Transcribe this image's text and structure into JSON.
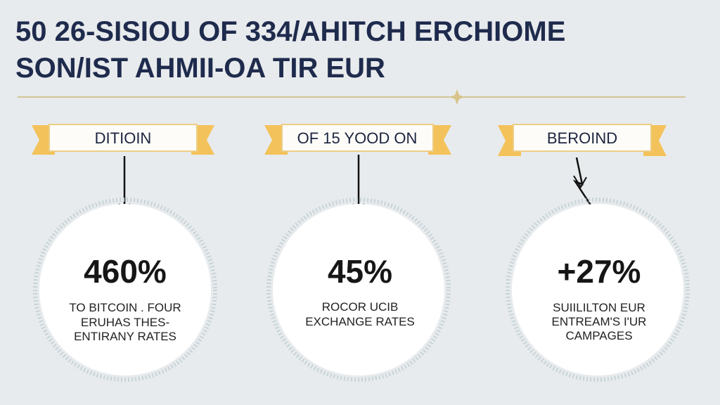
{
  "header": {
    "title_lines": [
      "50 26-SISIOU OF 334/AHITCH ERCHIOME",
      "SON/IST AHMII-OA TIR EUR"
    ]
  },
  "panels": [
    {
      "banner": "DITIOIN",
      "stat": "460%",
      "caption_lines": [
        "TO BITCOIN . FOUR",
        "ERUHAS THES-",
        "ENTIRANY RATES"
      ]
    },
    {
      "banner": "OF 15 YOOD ON",
      "stat": "45%",
      "caption_lines": [
        "ROCOR UCIB",
        "EXCHANGE RATES"
      ]
    },
    {
      "banner": "BEROIND",
      "stat": "+27%",
      "caption_lines": [
        "SUIILILTON EUR",
        "ENTREAM'S I'UR",
        "CAMPAGES"
      ]
    }
  ]
}
